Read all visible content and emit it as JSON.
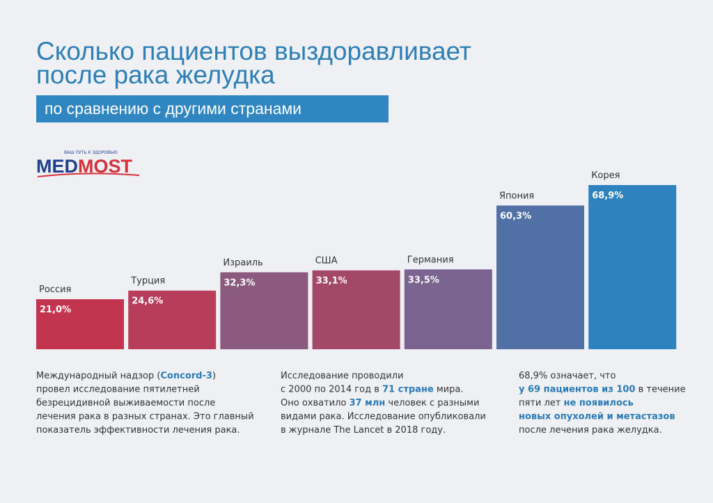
{
  "header": {
    "title": [
      "Сколько пациентов выздоравливает",
      "после рака желудка"
    ],
    "subtitle": "по сравнению с другими странами"
  },
  "logo": {
    "tagline": "ВАШ ПУТЬ К ЗДОРОВЬЮ",
    "name": [
      "MED",
      "MOST"
    ]
  },
  "chart_data": {
    "type": "bar",
    "categories": [
      "Россия",
      "Турция",
      "Израиль",
      "США",
      "Германия",
      "Япония",
      "Корея"
    ],
    "values": [
      21.0,
      24.6,
      32.3,
      33.1,
      33.5,
      60.3,
      68.9
    ],
    "value_labels": [
      "21,0%",
      "24,6%",
      "32,3%",
      "33,1%",
      "33,5%",
      "60,3%",
      "68,9%"
    ],
    "colors": [
      "#c3344f",
      "#b83d5b",
      "#8c5a7f",
      "#a44868",
      "#7b6490",
      "#5070a6",
      "#2e83bf"
    ]
  },
  "notes": [
    [
      [
        {
          "text": "Международный надзор ("
        },
        {
          "text": "Concord-3",
          "highlight": true
        },
        {
          "text": ")"
        }
      ],
      [
        {
          "text": "провел исследование пятилетней"
        }
      ],
      [
        {
          "text": "безрецидивной выживаемости после"
        }
      ],
      [
        {
          "text": "лечения рака в разных странах. Это главный"
        }
      ],
      [
        {
          "text": "показатель эффективности лечения рака."
        }
      ]
    ],
    [
      [
        {
          "text": "Исследование проводили"
        }
      ],
      [
        {
          "text": "с 2000 по 2014 год в "
        },
        {
          "text": "71 стране",
          "highlight": true
        },
        {
          "text": " мира."
        }
      ],
      [
        {
          "text": "Оно охватило "
        },
        {
          "text": "37 млн",
          "highlight": true
        },
        {
          "text": " человек с разными"
        }
      ],
      [
        {
          "text": "видами рака. Исследование опубликовали"
        }
      ],
      [
        {
          "text": "в журнале The Lancet в 2018 году."
        }
      ]
    ],
    [
      [
        {
          "text": "68,9% означает, что"
        }
      ],
      [
        {
          "text": "у 69 пациентов из 100",
          "highlight": true
        },
        {
          "text": " в течение"
        }
      ],
      [
        {
          "text": "пяти лет "
        },
        {
          "text": "не появилось",
          "highlight": true
        }
      ],
      [
        {
          "text": "новых опухолей и метастазов",
          "highlight": true
        }
      ],
      [
        {
          "text": "после лечения рака желудка."
        }
      ]
    ]
  ]
}
